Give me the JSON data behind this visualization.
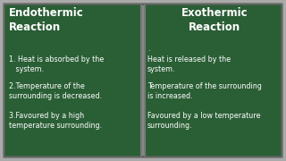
{
  "bg_outer": "#888888",
  "bg_board": "#2a5e35",
  "divider_color": "#888888",
  "border_outer_color": "#999999",
  "border_inner_color": "#1a4025",
  "text_color": "#ffffff",
  "title_left": "Endothermic\nReaction",
  "title_right": "Exothermic\nReaction",
  "left_points": [
    "1. Heat is absorbed by the\n   system.",
    "2.Temperature of the\nsurrounding is decreased.",
    "3.Favoured by a high\ntemperature surrounding."
  ],
  "right_points": [
    "Heat is released by the\nsystem.",
    "Temperature of the surrounding\nis increased.",
    "Favoured by a low temperature\nsurrounding."
  ],
  "title_fontsize": 8.5,
  "body_fontsize": 5.8,
  "figsize": [
    3.2,
    1.8
  ],
  "dpi": 100
}
